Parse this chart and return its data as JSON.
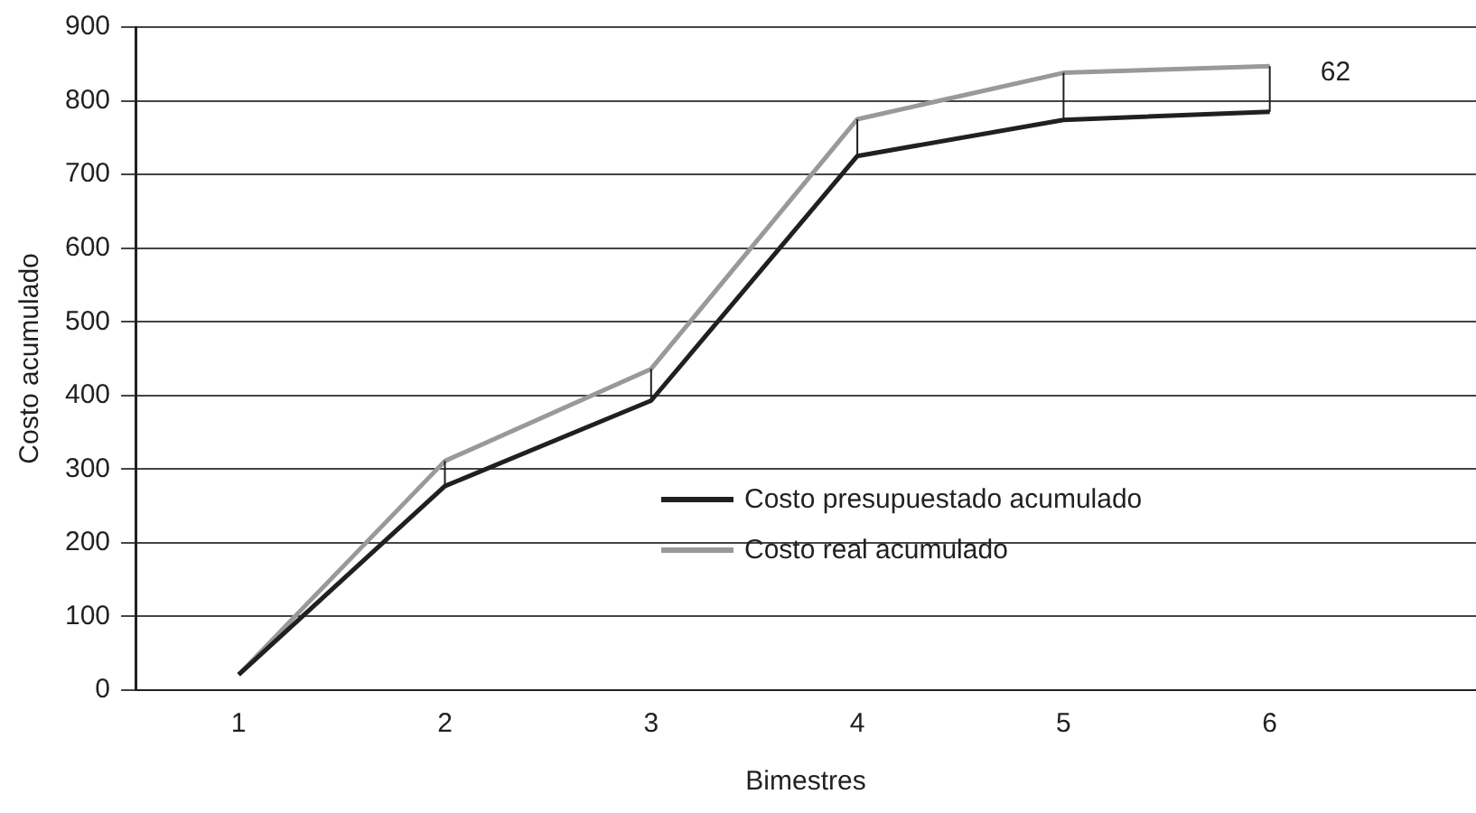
{
  "chart_data": {
    "type": "line",
    "xlabel": "Bimestres",
    "ylabel": "Costo acumulado",
    "x": [
      1,
      2,
      3,
      4,
      5,
      6
    ],
    "xlim": [
      0.5,
      7
    ],
    "xticks": [
      1,
      2,
      3,
      4,
      5,
      6
    ],
    "ylim": [
      0,
      900
    ],
    "yticks": [
      0,
      100,
      200,
      300,
      400,
      500,
      600,
      700,
      800,
      900
    ],
    "series": [
      {
        "name": "Costo presupuestado acumulado",
        "color": "#231f20",
        "values": [
          21,
          277,
          393,
          725,
          774,
          785
        ],
        "errors": [
          null,
          [
            277,
            311
          ],
          [
            393,
            436
          ],
          [
            725,
            775
          ],
          [
            774,
            838
          ],
          [
            785,
            847
          ]
        ]
      },
      {
        "name": "Costo real acumulado",
        "color": "#999999",
        "values": [
          21,
          311,
          436,
          775,
          838,
          847
        ]
      }
    ],
    "annotations": [
      {
        "text": "62",
        "x": 6,
        "y": 838
      }
    ],
    "grid": "y",
    "legend": "bottom",
    "marker": "none",
    "line_style": "solid"
  }
}
